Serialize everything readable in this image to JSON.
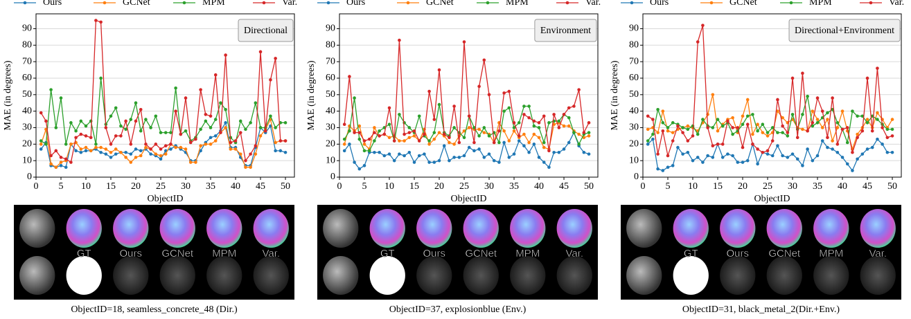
{
  "chart_data": [
    {
      "type": "line",
      "title": "Directional",
      "xlabel": "ObjectID",
      "ylabel": "MAE (in degrees)",
      "x": [
        1,
        2,
        3,
        4,
        5,
        6,
        7,
        8,
        9,
        10,
        11,
        12,
        13,
        14,
        15,
        16,
        17,
        18,
        19,
        20,
        21,
        22,
        23,
        24,
        25,
        26,
        27,
        28,
        29,
        30,
        31,
        32,
        33,
        34,
        35,
        36,
        37,
        38,
        39,
        40,
        41,
        42,
        43,
        44,
        45,
        46,
        47,
        48,
        49,
        50
      ],
      "xlim": [
        0,
        51.8
      ],
      "ylim": [
        0,
        99
      ],
      "xticks": [
        0,
        5,
        10,
        15,
        20,
        25,
        30,
        35,
        40,
        45,
        50
      ],
      "yticks": [
        0,
        10,
        20,
        30,
        40,
        50,
        60,
        70,
        80,
        90
      ],
      "grid": "y",
      "legend": "top",
      "series": [
        {
          "name": "Ours",
          "color": "#1f77b4",
          "values": [
            17,
            21,
            7,
            6,
            7,
            6,
            20,
            16,
            15,
            16,
            16,
            17,
            15,
            14,
            12,
            14,
            15,
            15,
            14,
            17,
            16,
            17,
            14,
            13,
            11,
            16,
            17,
            19,
            17,
            15,
            10,
            10,
            16,
            21,
            24,
            25,
            28,
            33,
            18,
            18,
            12,
            7,
            7,
            18,
            30,
            27,
            31,
            16,
            16,
            15
          ]
        },
        {
          "name": "GCNet",
          "color": "#ff7f0e",
          "values": [
            20,
            29,
            8,
            6,
            9,
            10,
            20,
            21,
            17,
            18,
            16,
            18,
            18,
            17,
            15,
            17,
            15,
            12,
            9,
            12,
            13,
            18,
            17,
            14,
            13,
            14,
            20,
            18,
            18,
            17,
            9,
            9,
            19,
            20,
            20,
            22,
            27,
            30,
            17,
            17,
            14,
            6,
            6,
            14,
            25,
            29,
            35,
            21,
            22,
            22
          ]
        },
        {
          "name": "MPM",
          "color": "#2ca02c",
          "values": [
            22,
            20,
            53,
            30,
            48,
            20,
            33,
            28,
            34,
            31,
            34,
            20,
            60,
            32,
            37,
            42,
            31,
            29,
            35,
            45,
            28,
            35,
            30,
            37,
            27,
            27,
            27,
            54,
            26,
            28,
            22,
            24,
            29,
            34,
            30,
            35,
            45,
            41,
            24,
            21,
            34,
            29,
            33,
            45,
            30,
            30,
            37,
            30,
            33,
            33
          ]
        },
        {
          "name": "Var.",
          "color": "#d62728",
          "values": [
            39,
            34,
            13,
            16,
            12,
            11,
            9,
            24,
            26,
            25,
            24,
            95,
            94,
            30,
            20,
            25,
            25,
            34,
            20,
            34,
            41,
            20,
            17,
            20,
            17,
            19,
            20,
            40,
            26,
            48,
            21,
            23,
            53,
            38,
            37,
            62,
            27,
            74,
            21,
            22,
            27,
            10,
            14,
            19,
            76,
            28,
            59,
            72,
            22,
            22
          ]
        }
      ],
      "image_labels": [
        "GT",
        "Ours",
        "GCNet",
        "MPM",
        "Var."
      ],
      "caption": "ObjectID=18, seamless_concrete_48 (Dir.)"
    },
    {
      "type": "line",
      "title": "Environment",
      "xlabel": "ObjectID",
      "ylabel": "MAE (in degrees)",
      "x": [
        1,
        2,
        3,
        4,
        5,
        6,
        7,
        8,
        9,
        10,
        11,
        12,
        13,
        14,
        15,
        16,
        17,
        18,
        19,
        20,
        21,
        22,
        23,
        24,
        25,
        26,
        27,
        28,
        29,
        30,
        31,
        32,
        33,
        34,
        35,
        36,
        37,
        38,
        39,
        40,
        41,
        42,
        43,
        44,
        45,
        46,
        47,
        48,
        49,
        50
      ],
      "xlim": [
        0,
        51.8
      ],
      "ylim": [
        0,
        99
      ],
      "xticks": [
        0,
        5,
        10,
        15,
        20,
        25,
        30,
        35,
        40,
        45,
        50
      ],
      "yticks": [
        0,
        10,
        20,
        30,
        40,
        50,
        60,
        70,
        80,
        90
      ],
      "grid": "y",
      "legend": "top",
      "series": [
        {
          "name": "Ours",
          "color": "#1f77b4",
          "values": [
            16,
            20,
            9,
            5,
            7,
            15,
            15,
            15,
            13,
            14,
            10,
            14,
            13,
            15,
            9,
            13,
            14,
            9,
            9,
            10,
            19,
            10,
            12,
            12,
            13,
            18,
            16,
            17,
            12,
            14,
            10,
            9,
            21,
            12,
            14,
            22,
            19,
            15,
            20,
            12,
            9,
            6,
            15,
            15,
            17,
            21,
            27,
            19,
            15,
            14
          ]
        },
        {
          "name": "GCNet",
          "color": "#ff7f0e",
          "values": [
            20,
            31,
            28,
            31,
            20,
            17,
            30,
            25,
            26,
            24,
            25,
            22,
            22,
            24,
            25,
            22,
            29,
            20,
            23,
            27,
            25,
            21,
            20,
            25,
            28,
            30,
            29,
            29,
            27,
            26,
            21,
            33,
            28,
            22,
            28,
            24,
            26,
            21,
            26,
            24,
            18,
            17,
            32,
            33,
            31,
            31,
            28,
            26,
            24,
            25
          ]
        },
        {
          "name": "MPM",
          "color": "#2ca02c",
          "values": [
            23,
            28,
            48,
            23,
            16,
            16,
            22,
            28,
            30,
            32,
            22,
            38,
            33,
            30,
            27,
            37,
            25,
            22,
            27,
            44,
            27,
            25,
            30,
            27,
            24,
            37,
            30,
            25,
            30,
            25,
            27,
            21,
            40,
            42,
            30,
            33,
            43,
            43,
            31,
            30,
            21,
            33,
            34,
            34,
            38,
            36,
            27,
            20,
            26,
            27
          ]
        },
        {
          "name": "Var.",
          "color": "#d62728",
          "values": [
            32,
            61,
            27,
            27,
            22,
            23,
            27,
            25,
            26,
            42,
            22,
            83,
            26,
            27,
            28,
            22,
            26,
            52,
            35,
            65,
            26,
            24,
            43,
            21,
            82,
            37,
            21,
            55,
            71,
            50,
            21,
            28,
            51,
            52,
            33,
            25,
            38,
            36,
            34,
            33,
            37,
            16,
            38,
            30,
            38,
            42,
            43,
            53,
            27,
            33
          ]
        }
      ],
      "image_labels": [
        "GT",
        "Ours",
        "GCNet",
        "MPM",
        "Var."
      ],
      "caption": "ObjectID=37, explosionblue (Env.)"
    },
    {
      "type": "line",
      "title": "Directional+Environment",
      "xlabel": "ObjectID",
      "ylabel": "MAE (in degrees)",
      "x": [
        1,
        2,
        3,
        4,
        5,
        6,
        7,
        8,
        9,
        10,
        11,
        12,
        13,
        14,
        15,
        16,
        17,
        18,
        19,
        20,
        21,
        22,
        23,
        24,
        25,
        26,
        27,
        28,
        29,
        30,
        31,
        32,
        33,
        34,
        35,
        36,
        37,
        38,
        39,
        40,
        41,
        42,
        43,
        44,
        45,
        46,
        47,
        48,
        49,
        50
      ],
      "xlim": [
        0,
        51.8
      ],
      "ylim": [
        0,
        99
      ],
      "xticks": [
        0,
        5,
        10,
        15,
        20,
        25,
        30,
        35,
        40,
        45,
        50
      ],
      "yticks": [
        0,
        10,
        20,
        30,
        40,
        50,
        60,
        70,
        80,
        90
      ],
      "grid": "y",
      "legend": "top",
      "series": [
        {
          "name": "Ours",
          "color": "#1f77b4",
          "values": [
            20,
            23,
            5,
            4,
            6,
            7,
            18,
            14,
            15,
            10,
            12,
            9,
            13,
            12,
            20,
            12,
            14,
            13,
            9,
            9,
            10,
            20,
            8,
            15,
            14,
            13,
            19,
            13,
            12,
            14,
            11,
            7,
            17,
            10,
            13,
            22,
            18,
            17,
            15,
            12,
            8,
            4,
            11,
            14,
            17,
            18,
            23,
            20,
            15,
            15
          ]
        },
        {
          "name": "GCNet",
          "color": "#ff7f0e",
          "values": [
            29,
            30,
            27,
            40,
            28,
            27,
            29,
            30,
            31,
            30,
            28,
            33,
            38,
            50,
            28,
            32,
            35,
            36,
            27,
            37,
            47,
            26,
            32,
            27,
            25,
            27,
            40,
            36,
            33,
            35,
            30,
            29,
            28,
            40,
            35,
            30,
            35,
            22,
            30,
            40,
            28,
            17,
            26,
            30,
            35,
            30,
            39,
            35,
            30,
            35
          ]
        },
        {
          "name": "MPM",
          "color": "#2ca02c",
          "values": [
            22,
            26,
            41,
            33,
            30,
            33,
            32,
            30,
            29,
            31,
            26,
            35,
            31,
            30,
            35,
            31,
            33,
            26,
            28,
            32,
            37,
            38,
            28,
            32,
            27,
            30,
            27,
            27,
            25,
            38,
            29,
            38,
            49,
            31,
            33,
            36,
            39,
            41,
            33,
            29,
            21,
            40,
            37,
            37,
            33,
            37,
            35,
            32,
            29,
            29
          ]
        },
        {
          "name": "Var.",
          "color": "#d62728",
          "values": [
            37,
            35,
            14,
            28,
            13,
            22,
            31,
            27,
            22,
            25,
            82,
            92,
            30,
            19,
            20,
            20,
            34,
            30,
            30,
            18,
            32,
            20,
            17,
            15,
            16,
            22,
            47,
            31,
            27,
            60,
            24,
            63,
            28,
            33,
            48,
            40,
            24,
            48,
            20,
            29,
            30,
            15,
            24,
            28,
            60,
            28,
            66,
            30,
            24,
            25
          ]
        }
      ],
      "image_labels": [
        "GT",
        "Ours",
        "GCNet",
        "MPM",
        "Var."
      ],
      "caption": "ObjectID=31, black_metal_2(Dir.+Env.)"
    }
  ]
}
